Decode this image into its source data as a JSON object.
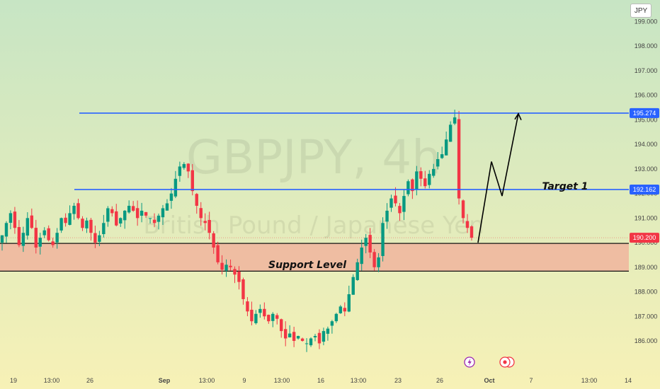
{
  "currency_badge": "JPY",
  "watermark": {
    "symbol": "GBPJPY, 4h",
    "name": "British Pound / Japanese Yen"
  },
  "colors": {
    "bg_top": "#c7e5c4",
    "bg_bottom": "#f7f1b6",
    "up": "#089981",
    "down": "#f23645",
    "blue_line": "#2962ff",
    "support_zone": "#f0b49e",
    "price_tag": "#f23645"
  },
  "levels": {
    "target_price": "195.274",
    "target1_price": "192.162",
    "current_price": "190.200"
  },
  "annotations": {
    "target1": "Target 1",
    "support": "Support Level"
  },
  "icons": {
    "lightning": "lightning-icon",
    "events": "economic-event-icon"
  },
  "chart_data": {
    "type": "candlestick",
    "title": "",
    "timeframe": "4h",
    "y_axis": {
      "ticks": [
        186.0,
        187.0,
        188.0,
        189.0,
        190.0,
        191.0,
        192.0,
        193.0,
        194.0,
        195.0,
        196.0,
        197.0,
        198.0,
        199.0
      ],
      "tick_labels": [
        "186.000",
        "187.000",
        "188.000",
        "189.000",
        "190.000",
        "191.000",
        "192.000",
        "193.000",
        "194.000",
        "195.000",
        "196.000",
        "197.000",
        "198.000",
        "199.000"
      ],
      "range": [
        185.8,
        199.5
      ]
    },
    "x_axis": {
      "tick_labels": [
        "19",
        "13:00",
        "26",
        "Sep",
        "13:00",
        "9",
        "13:00",
        "16",
        "13:00",
        "23",
        "26",
        "Oct",
        "7",
        "13:00",
        "14"
      ],
      "bold_labels": [
        "Sep",
        "Oct"
      ]
    },
    "horizontal_levels": [
      {
        "name": "Target",
        "value": 195.274
      },
      {
        "name": "Target 1",
        "value": 192.162
      }
    ],
    "support_zone": {
      "low": 188.84,
      "high": 189.97,
      "label": "Support Level"
    },
    "last_price": 190.2,
    "projection_path": [
      190.0,
      193.3,
      191.9,
      195.25
    ],
    "close_path": [
      190.3,
      190.8,
      191.2,
      190.6,
      189.9,
      190.4,
      191.0,
      190.6,
      189.8,
      190.2,
      190.5,
      190.1,
      189.9,
      190.4,
      191.0,
      190.8,
      191.2,
      191.5,
      191.0,
      190.6,
      190.9,
      190.4,
      190.0,
      190.3,
      190.8,
      191.4,
      191.2,
      190.7,
      191.0,
      191.3,
      191.5,
      191.3,
      191.0,
      191.3,
      191.1,
      191.0,
      190.8,
      191.1,
      191.4,
      191.6,
      192.0,
      192.6,
      193.1,
      193.2,
      192.9,
      192.1,
      191.5,
      191.0,
      190.8,
      190.4,
      189.8,
      189.2,
      188.9,
      189.1,
      189.0,
      188.7,
      188.4,
      187.7,
      187.2,
      186.8,
      187.1,
      187.3,
      187.0,
      186.8,
      187.1,
      186.9,
      186.4,
      186.1,
      186.3,
      186.0,
      186.2,
      186.0,
      185.9,
      186.1,
      186.2,
      185.9,
      186.4,
      186.5,
      186.8,
      187.1,
      187.4,
      187.2,
      187.9,
      188.6,
      189.2,
      189.8,
      190.2,
      189.6,
      189.0,
      189.4,
      190.8,
      191.3,
      191.8,
      191.6,
      191.2,
      191.9,
      192.5,
      192.1,
      192.9,
      192.6,
      192.3,
      192.8,
      193.0,
      193.4,
      193.6,
      194.2,
      194.8,
      195.1,
      191.8,
      191.0,
      190.6,
      190.2
    ]
  }
}
